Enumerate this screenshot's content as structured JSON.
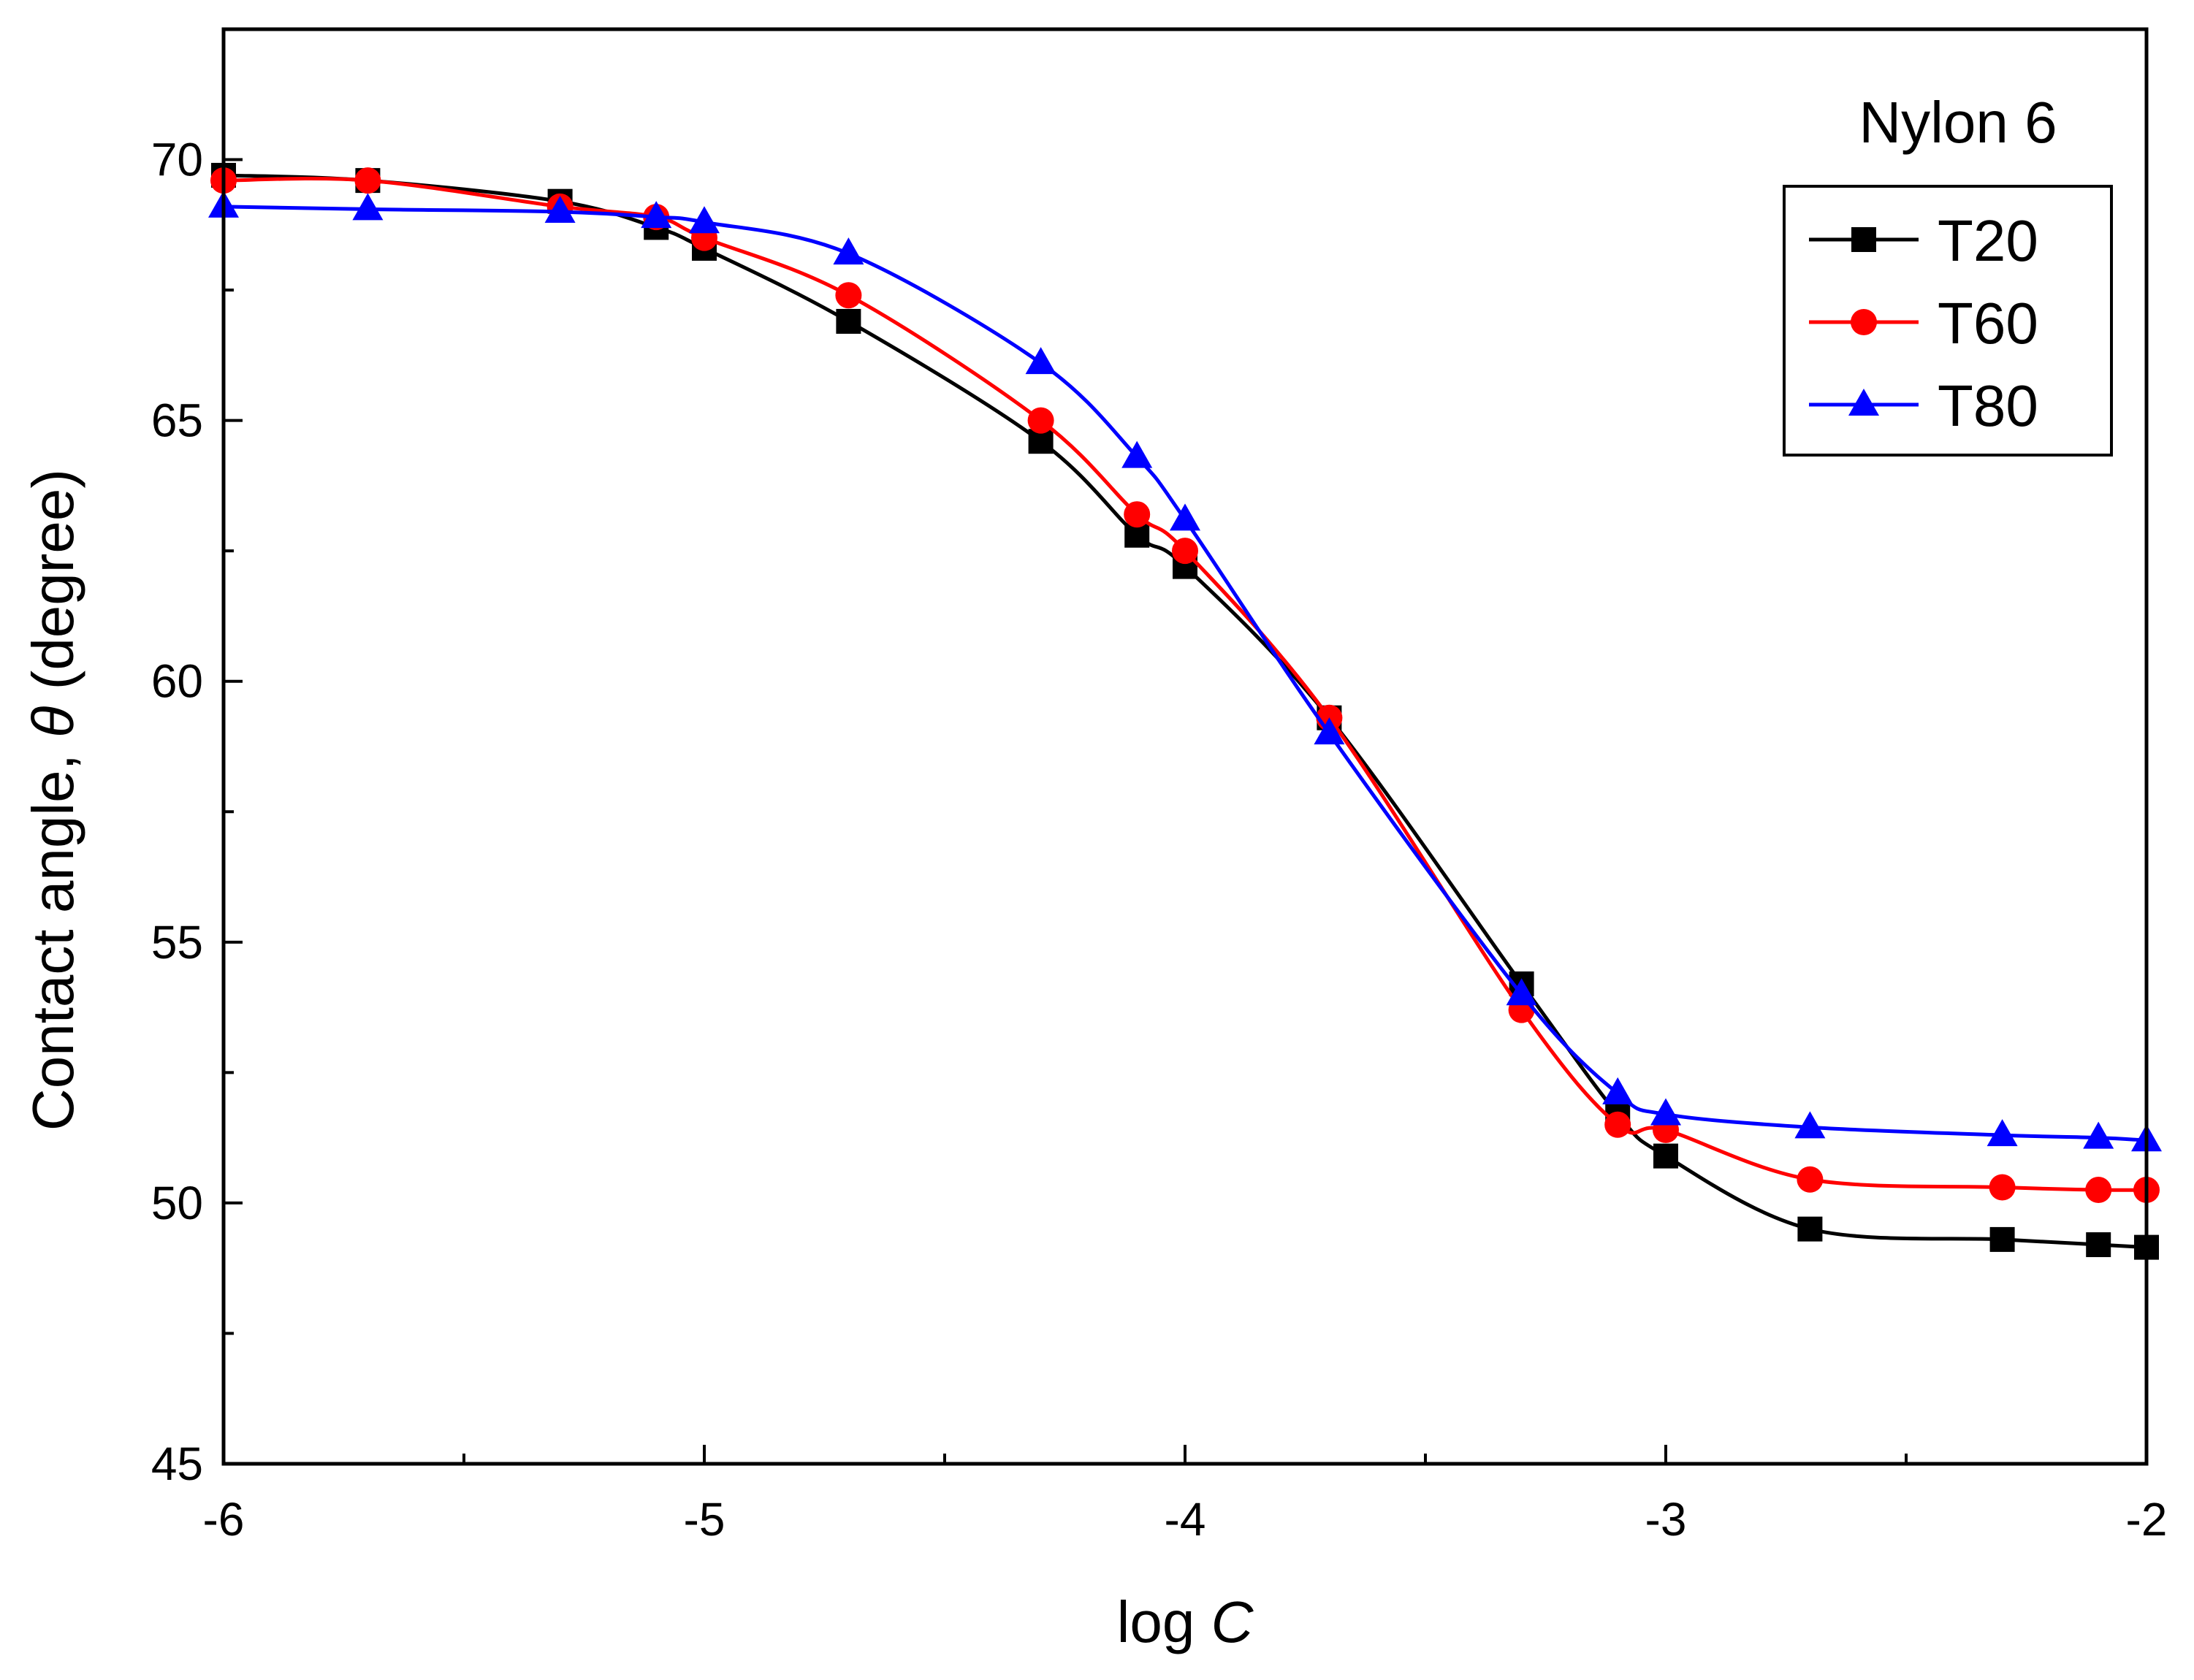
{
  "chart_data": {
    "type": "line",
    "title": "",
    "annotation": "Nylon 6",
    "xlabel_prefix": "log ",
    "xlabel_var": "C",
    "ylabel_prefix": "Contact angle, ",
    "ylabel_var": "θ",
    "ylabel_suffix": " (degree)",
    "xlim": [
      -6,
      -2
    ],
    "ylim": [
      45,
      72.5
    ],
    "x_ticks": [
      -6,
      -5,
      -4,
      -3,
      -2
    ],
    "x_tick_labels": [
      "-6",
      "-5",
      "-4",
      "-3",
      "-2"
    ],
    "y_ticks": [
      45,
      50,
      55,
      60,
      65,
      70
    ],
    "y_tick_labels": [
      "45",
      "50",
      "55",
      "60",
      "65",
      "70"
    ],
    "grid": false,
    "legend_position": "top-right",
    "series": [
      {
        "name": "T20",
        "color": "#000000",
        "marker": "square",
        "x": [
          -6,
          -5.7,
          -5.3,
          -5.1,
          -5,
          -4.7,
          -4.3,
          -4.1,
          -4,
          -3.7,
          -3.3,
          -3.1,
          -3,
          -2.7,
          -2.3,
          -2.1,
          -2
        ],
        "y": [
          69.7,
          69.6,
          69.2,
          68.7,
          68.3,
          66.9,
          64.6,
          62.8,
          62.2,
          59.3,
          54.2,
          51.7,
          50.9,
          49.5,
          49.3,
          49.2,
          49.15
        ]
      },
      {
        "name": "T60",
        "color": "#ff0000",
        "marker": "circle",
        "x": [
          -6,
          -5.7,
          -5.3,
          -5.1,
          -5,
          -4.7,
          -4.3,
          -4.1,
          -4,
          -3.7,
          -3.3,
          -3.1,
          -3,
          -2.7,
          -2.3,
          -2.1,
          -2
        ],
        "y": [
          69.6,
          69.6,
          69.1,
          68.9,
          68.5,
          67.4,
          65.0,
          63.2,
          62.5,
          59.3,
          53.7,
          51.5,
          51.4,
          50.45,
          50.3,
          50.25,
          50.25
        ]
      },
      {
        "name": "T80",
        "color": "#0000ff",
        "marker": "triangle",
        "x": [
          -6,
          -5.7,
          -5.3,
          -5.1,
          -5,
          -4.7,
          -4.3,
          -4.1,
          -4,
          -3.7,
          -3.3,
          -3.1,
          -3,
          -2.7,
          -2.3,
          -2.1,
          -2
        ],
        "y": [
          69.1,
          69.05,
          69.0,
          68.9,
          68.8,
          68.2,
          66.1,
          64.3,
          63.1,
          59.0,
          54.0,
          52.1,
          51.7,
          51.45,
          51.3,
          51.25,
          51.2
        ]
      }
    ]
  }
}
